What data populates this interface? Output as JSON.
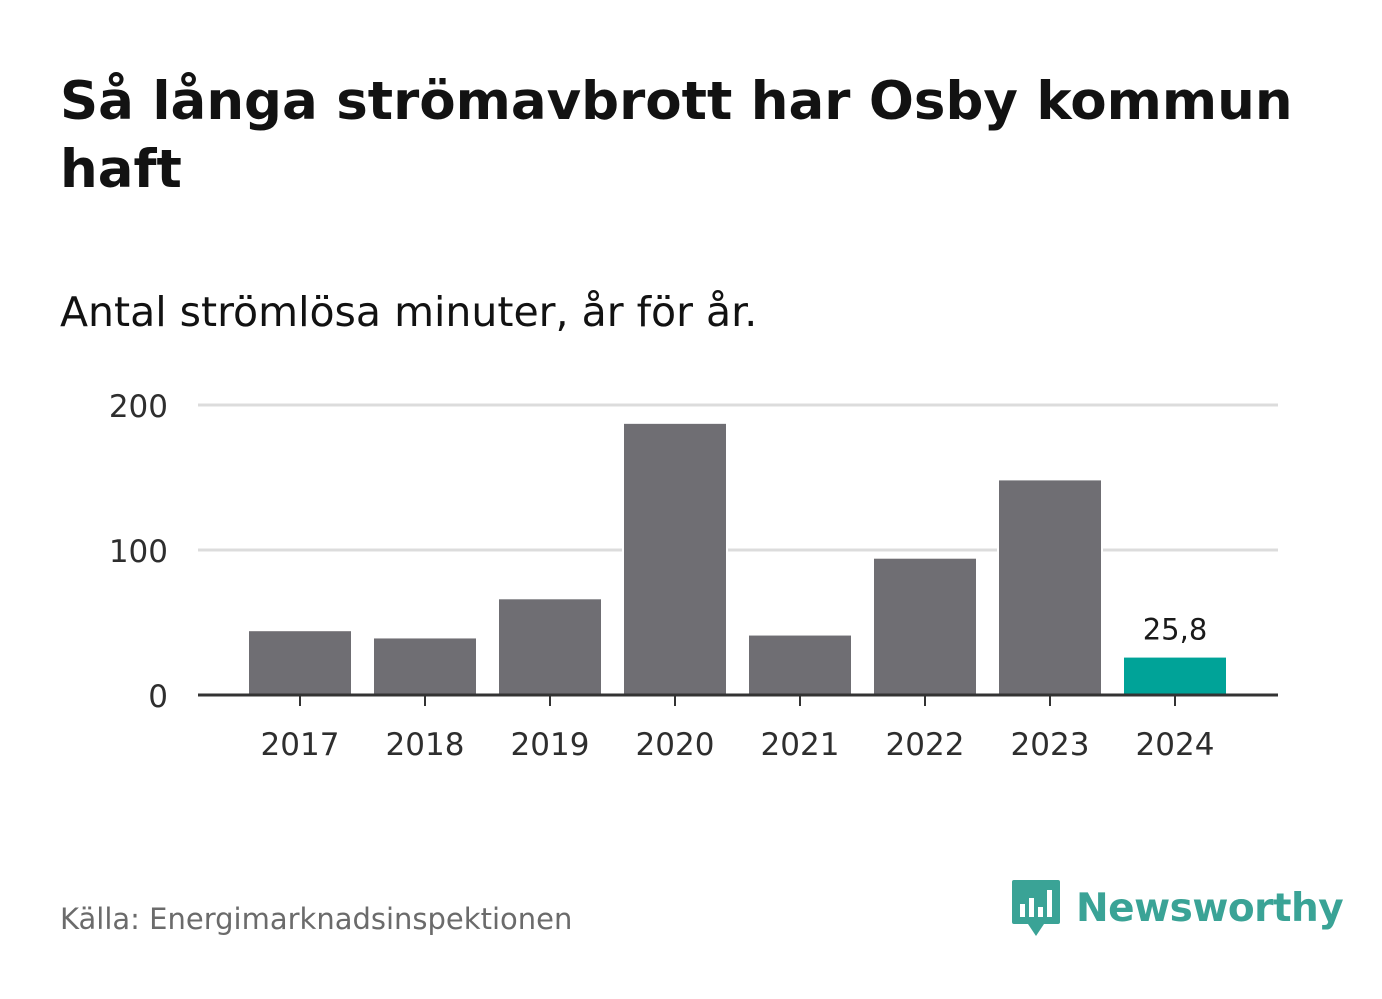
{
  "title": "Så långa strömavbrott har Osby kommun haft",
  "subtitle": "Antal strömlösa minuter, år för år.",
  "source": "Källa: Energimarknadsinspektionen",
  "brand": {
    "name": "Newsworthy",
    "color": "#3aa396",
    "icon": "newsworthy-logo-icon"
  },
  "colors": {
    "bar": "#6f6e73",
    "highlight": "#00a398",
    "grid": "#dcdcdc",
    "axis": "#333333",
    "text": "#2e2e2e"
  },
  "chart_data": {
    "type": "bar",
    "title": "Så långa strömavbrott har Osby kommun haft",
    "subtitle": "Antal strömlösa minuter, år för år.",
    "categories": [
      "2017",
      "2018",
      "2019",
      "2020",
      "2021",
      "2022",
      "2023",
      "2024"
    ],
    "values": [
      44,
      39,
      66,
      187,
      41,
      94,
      148,
      25.8
    ],
    "highlight_index": 7,
    "data_labels": [
      {
        "index": 7,
        "text": "25,8"
      }
    ],
    "yticks": [
      0,
      100,
      200
    ],
    "ylim": [
      0,
      200
    ],
    "xlabel": "",
    "ylabel": "",
    "grid": true,
    "legend": "none"
  }
}
